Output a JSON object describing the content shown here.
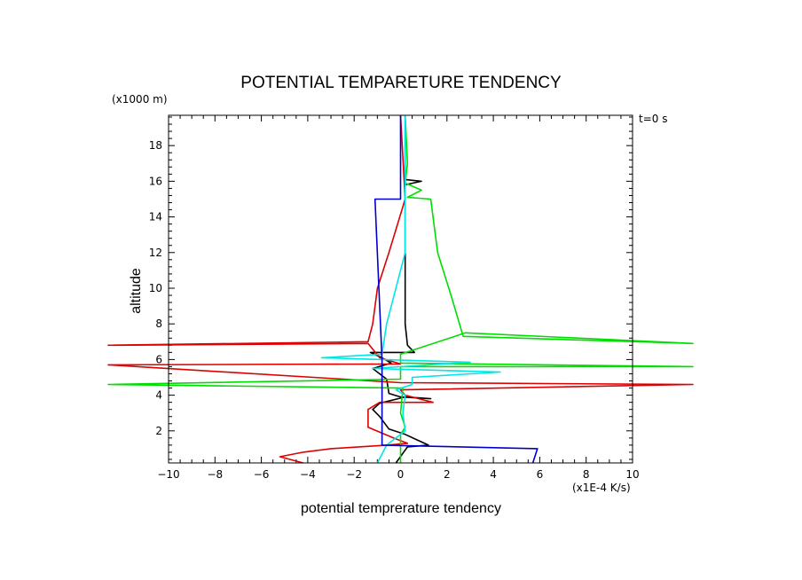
{
  "chart_data": {
    "type": "line",
    "title": "POTENTIAL TEMPARETURE TENDENCY",
    "xlabel": "potential temprerature tendency",
    "ylabel": "altitude",
    "x_unit": "(x1E-4 K/s)",
    "y_unit": "(x1000 m)",
    "time_label": "t=0 s",
    "xlim": [
      -10,
      10
    ],
    "ylim": [
      0.2,
      19.7
    ],
    "x_ticks": [
      -10,
      -8,
      -6,
      -4,
      -2,
      0,
      2,
      4,
      6,
      8,
      10
    ],
    "y_ticks": [
      2,
      4,
      6,
      8,
      10,
      12,
      14,
      16,
      18
    ],
    "series": [
      {
        "name": "black",
        "color": "#000000",
        "points": [
          [
            -0.2,
            0.2
          ],
          [
            0.3,
            1.1
          ],
          [
            1.2,
            1.2
          ],
          [
            0.7,
            1.5
          ],
          [
            0.2,
            1.8
          ],
          [
            -0.5,
            2.1
          ],
          [
            -0.9,
            2.8
          ],
          [
            -1.2,
            3.2
          ],
          [
            -0.9,
            3.55
          ],
          [
            0.2,
            3.9
          ],
          [
            1.3,
            3.8
          ],
          [
            0,
            3.9
          ],
          [
            -0.5,
            4.1
          ],
          [
            -0.6,
            4.9
          ],
          [
            -1.2,
            5.5
          ],
          [
            -0.4,
            5.8
          ],
          [
            -0.8,
            6.1
          ],
          [
            -1.3,
            6.4
          ],
          [
            0.6,
            6.4
          ],
          [
            0.3,
            6.8
          ],
          [
            0.2,
            8
          ],
          [
            0.2,
            15.8
          ],
          [
            0.9,
            16
          ],
          [
            0.2,
            16.1
          ],
          [
            0.2,
            19.7
          ]
        ]
      },
      {
        "name": "red",
        "color": "#dd0000",
        "points": [
          [
            -4.2,
            0.2
          ],
          [
            -5.2,
            0.55
          ],
          [
            -4.2,
            0.8
          ],
          [
            -3.0,
            1.0
          ],
          [
            -0.6,
            1.2
          ],
          [
            0.3,
            1.3
          ],
          [
            -0.3,
            1.6
          ],
          [
            -1.4,
            2.2
          ],
          [
            -1.4,
            3.2
          ],
          [
            -0.9,
            3.6
          ],
          [
            1.4,
            3.6
          ],
          [
            0.2,
            4.0
          ],
          [
            0,
            4.3
          ],
          [
            12.6,
            4.6
          ],
          [
            0,
            4.7
          ],
          [
            -12.6,
            5.7
          ],
          [
            0,
            5.75
          ],
          [
            -0.9,
            6.1
          ],
          [
            -1.4,
            6.9
          ],
          [
            -12.6,
            6.8
          ],
          [
            -1.4,
            7.0
          ],
          [
            -1.2,
            8.0
          ],
          [
            -1.0,
            10.0
          ],
          [
            -0.5,
            12.0
          ],
          [
            0.2,
            15.0
          ],
          [
            0,
            19.7
          ]
        ]
      },
      {
        "name": "green",
        "color": "#00dd00",
        "points": [
          [
            0,
            0.2
          ],
          [
            0,
            1.8
          ],
          [
            0.2,
            2.2
          ],
          [
            0,
            3.0
          ],
          [
            0.1,
            4.4
          ],
          [
            -12.6,
            4.6
          ],
          [
            0,
            4.9
          ],
          [
            0,
            5.6
          ],
          [
            12.6,
            5.6
          ],
          [
            0,
            5.8
          ],
          [
            0,
            6.3
          ],
          [
            2.8,
            7.5
          ],
          [
            12.6,
            6.9
          ],
          [
            2.7,
            7.3
          ],
          [
            2.2,
            9.5
          ],
          [
            1.6,
            12.0
          ],
          [
            1.4,
            14.0
          ],
          [
            1.3,
            15.0
          ],
          [
            0.3,
            15.1
          ],
          [
            0.9,
            15.5
          ],
          [
            0.2,
            15.9
          ],
          [
            0.3,
            17.0
          ],
          [
            0.2,
            19.7
          ]
        ]
      },
      {
        "name": "cyan",
        "color": "#00e5e5",
        "points": [
          [
            -1,
            0.2
          ],
          [
            -0.6,
            1.2
          ],
          [
            0.2,
            2.0
          ],
          [
            0.1,
            3.0
          ],
          [
            0.2,
            4.0
          ],
          [
            -0.2,
            4.3
          ],
          [
            0.5,
            4.6
          ],
          [
            0.5,
            5.0
          ],
          [
            4.3,
            5.3
          ],
          [
            -1.2,
            5.5
          ],
          [
            3.0,
            5.85
          ],
          [
            -3.4,
            6.1
          ],
          [
            -0.8,
            6.3
          ],
          [
            -0.6,
            8.0
          ],
          [
            0.2,
            12.0
          ],
          [
            0.2,
            19.7
          ]
        ]
      },
      {
        "name": "blue",
        "color": "#0000cc",
        "points": [
          [
            5.7,
            0.2
          ],
          [
            5.9,
            1.0
          ],
          [
            -0.8,
            1.2
          ],
          [
            -0.8,
            6.0
          ],
          [
            -1.1,
            15.0
          ],
          [
            0,
            15.0
          ],
          [
            0,
            19.7
          ]
        ]
      }
    ]
  }
}
